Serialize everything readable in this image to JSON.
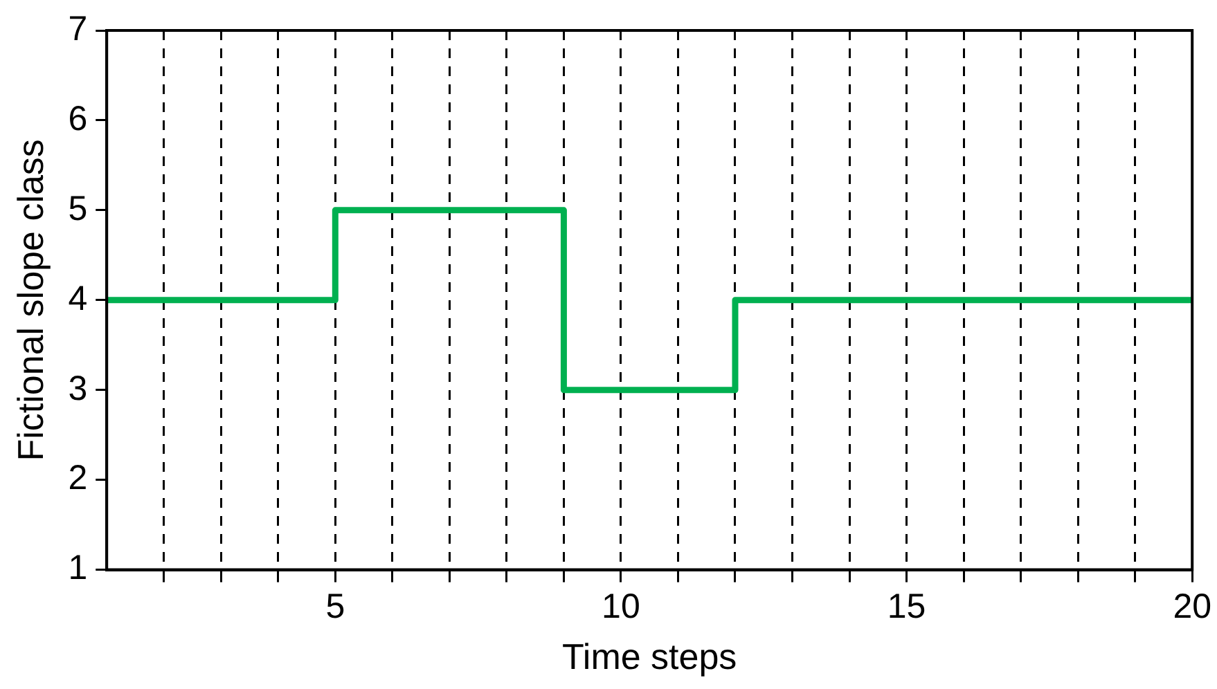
{
  "chart_data": {
    "type": "step",
    "xlabel": "Time steps",
    "ylabel": "Fictional slope class",
    "x": [
      1,
      5,
      9,
      12,
      20
    ],
    "series": [
      {
        "color": "#00b050",
        "values": [
          4,
          5,
          3,
          4,
          4
        ]
      }
    ],
    "xlim": [
      1,
      20
    ],
    "xticks": [
      {
        "value": 2,
        "label": null
      },
      {
        "value": 3,
        "label": null
      },
      {
        "value": 4,
        "label": null
      },
      5,
      {
        "value": 6,
        "label": null
      },
      {
        "value": 7,
        "label": null
      },
      {
        "value": 8,
        "label": null
      },
      {
        "value": 9,
        "label": null
      },
      10,
      {
        "value": 11,
        "label": null
      },
      {
        "value": 12,
        "label": null
      },
      {
        "value": 13,
        "label": null
      },
      {
        "value": 14,
        "label": null
      },
      15,
      {
        "value": 16,
        "label": null
      },
      {
        "value": 17,
        "label": null
      },
      {
        "value": 18,
        "label": null
      },
      {
        "value": 19,
        "label": null
      },
      20
    ],
    "ylim": [
      1,
      7
    ],
    "yticks": [
      1,
      2,
      3,
      4,
      5,
      6,
      7
    ],
    "grid": "x",
    "legend": false,
    "marker": "none",
    "line_style": "solid"
  }
}
